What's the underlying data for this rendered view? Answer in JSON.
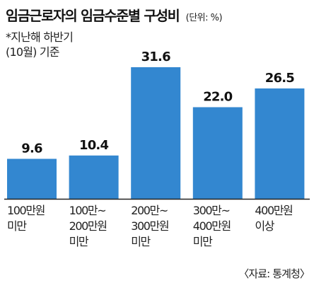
{
  "title": "임금근로자의 임금수준별 구성비",
  "unit_label": "(단위: %)",
  "note_lines": [
    "*지난해 하반기",
    "(10월) 기준"
  ],
  "source": "〈자료: 통계청〉",
  "colors": {
    "bar": "#3387d0",
    "baseline": "#222222",
    "text": "#111111"
  },
  "chart_data": {
    "type": "bar",
    "title": "임금근로자의 임금수준별 구성비",
    "ylabel": "(단위: %)",
    "categories": [
      [
        "100만원",
        "미만"
      ],
      [
        "100만~",
        "200만원",
        "미만"
      ],
      [
        "200만~",
        "300만원",
        "미만"
      ],
      [
        "300만~",
        "400만원",
        "미만"
      ],
      [
        "400만원",
        "이상"
      ]
    ],
    "values": [
      9.6,
      10.4,
      31.6,
      22.0,
      26.5
    ],
    "value_labels": [
      "9.6",
      "10.4",
      "31.6",
      "22.0",
      "26.5"
    ],
    "ylim": [
      0,
      31.6
    ],
    "grid": false,
    "legend": "none"
  }
}
